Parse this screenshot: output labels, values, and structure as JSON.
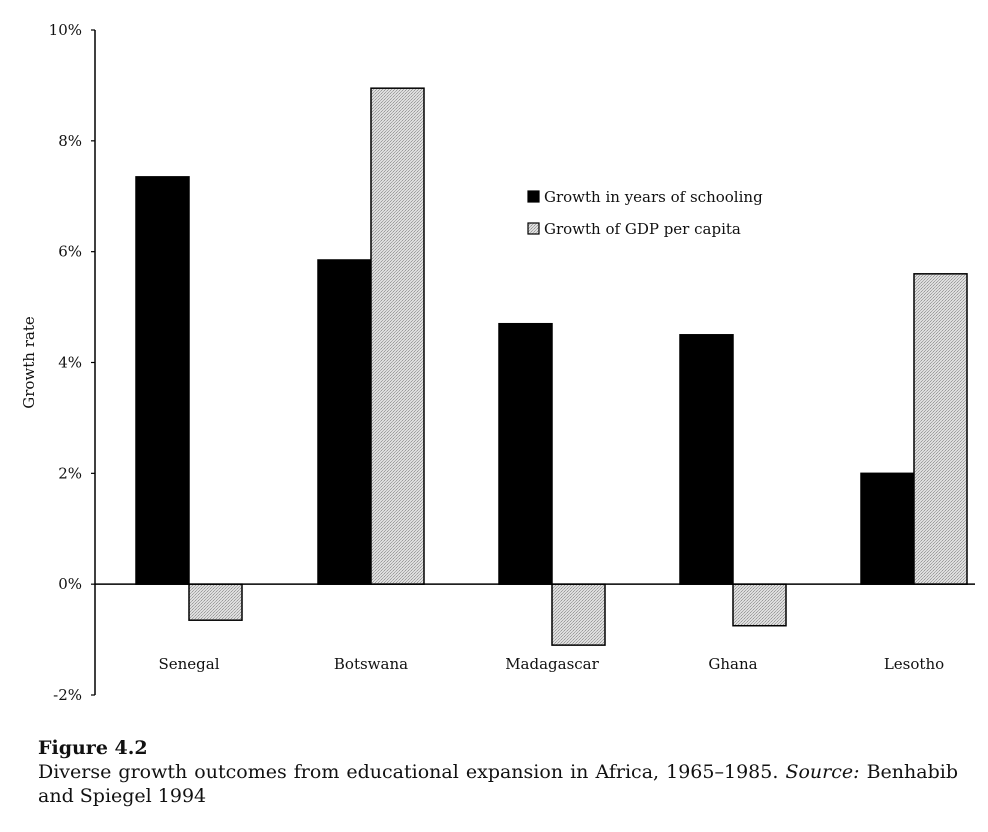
{
  "chart_data": {
    "type": "bar",
    "ylabel": "Growth rate",
    "ylim": [
      -2,
      10
    ],
    "yticks": [
      "10%",
      "8%",
      "6%",
      "4%",
      "2%",
      "0%",
      "-2%"
    ],
    "ytick_values": [
      10,
      8,
      6,
      4,
      2,
      0,
      -2
    ],
    "categories": [
      "Senegal",
      "Botswana",
      "Madagascar",
      "Ghana",
      "Lesotho"
    ],
    "series": [
      {
        "name": "Growth in years of schooling",
        "values": [
          7.35,
          5.85,
          4.7,
          4.5,
          2.0
        ],
        "color": "#000000"
      },
      {
        "name": "Growth of GDP per capita",
        "values": [
          -0.65,
          8.95,
          -1.1,
          -0.75,
          5.6
        ],
        "color": "#d3d3d3"
      }
    ],
    "legend_position": "upper-right",
    "grid": false
  },
  "caption": {
    "label": "Figure 4.2",
    "text": "Diverse growth outcomes from educational expansion in Africa, 1965–1985.",
    "source_label": "Source:",
    "source_text": "Benhabib and Spiegel 1994"
  }
}
